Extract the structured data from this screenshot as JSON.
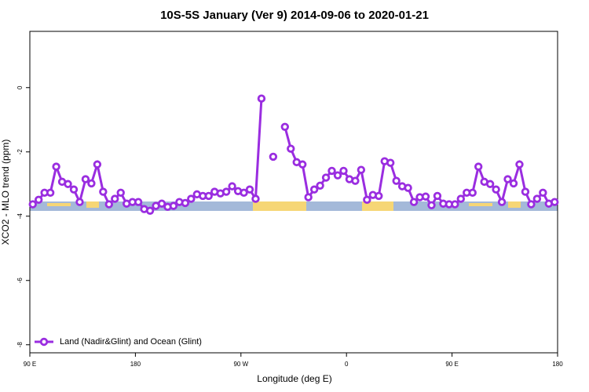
{
  "chart_data": {
    "type": "line",
    "title": "10S-5S January (Ver 9)   2014-09-06 to 2020-01-21",
    "xlabel": "Longitude (deg E)",
    "ylabel": "XCO2 - MLO trend (ppm)",
    "xlim": [
      90,
      540
    ],
    "ylim": [
      -8.25,
      1.75
    ],
    "xticks": [
      {
        "value": 90,
        "label": "90 E"
      },
      180,
      {
        "value": 270,
        "label": "90 W"
      },
      {
        "value": 360,
        "label": "0"
      },
      {
        "value": 450,
        "label": "90 E"
      },
      {
        "value": 540,
        "label": "180"
      }
    ],
    "yticks": [
      -8,
      -6,
      -4,
      -2,
      0
    ],
    "legend": "lower left",
    "x": [
      92.5,
      97.5,
      102.5,
      107.5,
      112.5,
      117.5,
      122.5,
      127.5,
      132.5,
      137.5,
      142.5,
      147.5,
      152.5,
      157.5,
      162.5,
      167.5,
      172.5,
      177.5,
      182.5,
      187.5,
      192.5,
      197.5,
      202.5,
      207.5,
      212.5,
      217.5,
      222.5,
      227.5,
      232.5,
      237.5,
      242.5,
      247.5,
      252.5,
      257.5,
      262.5,
      267.5,
      272.5,
      277.5,
      282.5,
      287.5,
      292.5,
      297.5,
      302.5,
      307.5,
      312.5,
      317.5,
      322.5,
      327.5,
      332.5,
      337.5,
      342.5,
      347.5,
      352.5,
      357.5,
      362.5,
      367.5,
      372.5,
      377.5,
      382.5,
      387.5,
      392.5,
      397.5,
      402.5,
      407.5,
      412.5,
      417.5,
      422.5,
      427.5,
      432.5,
      437.5,
      442.5,
      447.5,
      452.5,
      457.5,
      462.5,
      467.5,
      472.5,
      477.5,
      482.5,
      487.5,
      492.5,
      497.5,
      502.5,
      507.5,
      512.5,
      517.5,
      522.5,
      527.5,
      532.5,
      537.5
    ],
    "series": [
      {
        "name": "Land (Nadir&Glint) and Ocean (Glint)",
        "color": "#9a2de0",
        "values": [
          -3.63,
          -3.49,
          -3.27,
          -3.27,
          -2.46,
          -2.93,
          -3.0,
          -3.17,
          -3.56,
          -2.85,
          -2.98,
          -2.39,
          -3.24,
          -3.63,
          -3.46,
          -3.27,
          -3.61,
          -3.56,
          -3.56,
          -3.78,
          -3.83,
          -3.68,
          -3.61,
          -3.71,
          -3.68,
          -3.56,
          -3.59,
          -3.46,
          -3.32,
          -3.37,
          -3.37,
          -3.24,
          -3.29,
          -3.24,
          -3.07,
          -3.22,
          -3.27,
          -3.17,
          -3.46,
          -0.34,
          null,
          -2.15,
          null,
          -1.22,
          -1.9,
          -2.32,
          -2.39,
          -3.41,
          -3.17,
          -3.05,
          -2.8,
          -2.59,
          -2.73,
          -2.59,
          -2.85,
          -2.9,
          -2.56,
          -3.49,
          -3.34,
          -3.37,
          -2.29,
          -2.34,
          -2.9,
          -3.07,
          -3.12,
          -3.56,
          -3.41,
          -3.39,
          -3.66,
          -3.37,
          -3.61,
          -3.63,
          -3.63,
          -3.46,
          -3.27,
          -3.27,
          -2.46,
          -2.93,
          -3.0,
          -3.17,
          -3.56,
          -2.85,
          -2.98,
          -2.39,
          -3.24,
          -3.63,
          -3.46,
          -3.27,
          -3.61,
          -3.56
        ]
      }
    ]
  }
}
